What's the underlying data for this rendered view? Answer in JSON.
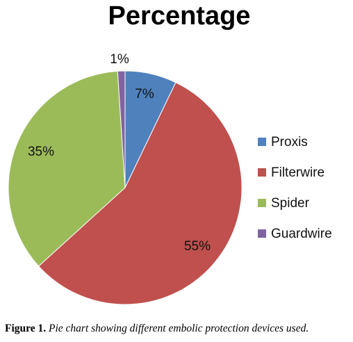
{
  "chart_data": {
    "type": "pie",
    "title": "Percentage",
    "categories": [
      "Proxis",
      "Filterwire",
      "Spider",
      "Guardwire"
    ],
    "values": [
      7,
      55,
      35,
      1
    ],
    "labels": [
      "7%",
      "55%",
      "35%",
      "1%"
    ],
    "colors": [
      "#4f81bd",
      "#c0504d",
      "#9bbb59",
      "#8064a2"
    ],
    "legend_position": "right"
  },
  "caption": {
    "label": "Figure 1.",
    "text": "Pie chart showing different embolic protection devices used."
  }
}
